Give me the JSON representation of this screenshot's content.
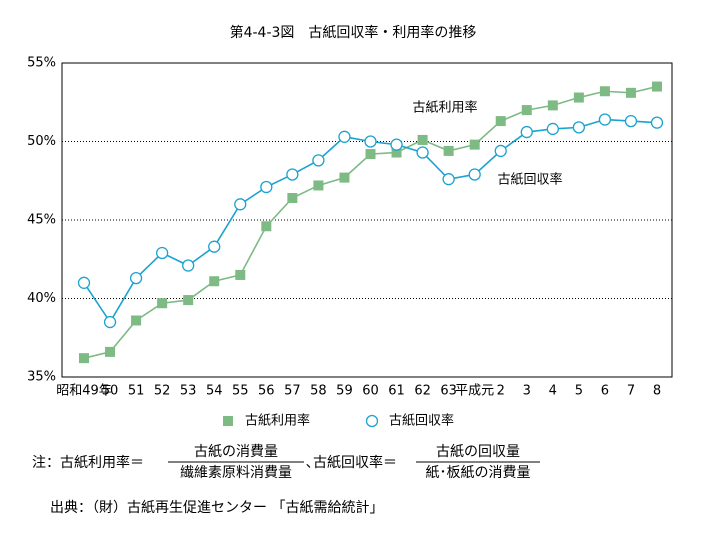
{
  "chart_data": {
    "type": "line",
    "title": "第4-4-3図　古紙回収率・利用率の推移",
    "categories": [
      "昭和49年",
      "50",
      "51",
      "52",
      "53",
      "54",
      "55",
      "56",
      "57",
      "58",
      "59",
      "60",
      "61",
      "62",
      "63",
      "平成元",
      "2",
      "3",
      "4",
      "5",
      "6",
      "7",
      "8"
    ],
    "series": [
      {
        "name": "古紙利用率",
        "color": "#7dba84",
        "marker": "square",
        "values": [
          36.2,
          36.6,
          38.6,
          39.7,
          39.9,
          41.1,
          41.5,
          44.6,
          46.4,
          47.2,
          47.7,
          49.2,
          49.3,
          50.1,
          49.4,
          49.8,
          51.3,
          52.0,
          52.3,
          52.8,
          53.2,
          53.1,
          53.5
        ]
      },
      {
        "name": "古紙回収率",
        "color": "#1ba3d0",
        "marker": "circle",
        "values": [
          41.0,
          38.5,
          41.3,
          42.9,
          42.1,
          43.3,
          46.0,
          47.1,
          47.9,
          48.8,
          50.3,
          50.0,
          49.8,
          49.3,
          47.6,
          47.9,
          49.4,
          50.6,
          50.8,
          50.9,
          51.4,
          51.3,
          51.2
        ]
      }
    ],
    "ylim": [
      35,
      55
    ],
    "yticks": [
      {
        "value": 35,
        "label": "35%"
      },
      {
        "value": 40,
        "label": "40%"
      },
      {
        "value": 45,
        "label": "45%"
      },
      {
        "value": 50,
        "label": "50%"
      },
      {
        "value": 55,
        "label": "55%"
      }
    ],
    "grid": true,
    "annotations": [
      "古紙利用率",
      "古紙回収率"
    ],
    "note": {
      "lead": "注：古紙利用率＝",
      "f1_num": "古紙の消費量",
      "f1_den": "繊維素原料消費量",
      "mid": "､古紙回収率＝",
      "f2_num": "古紙の回収量",
      "f2_den": "紙･板紙の消費量"
    },
    "source": "出典：（財）古紙再生促進センター 「古紙需給統計」"
  }
}
